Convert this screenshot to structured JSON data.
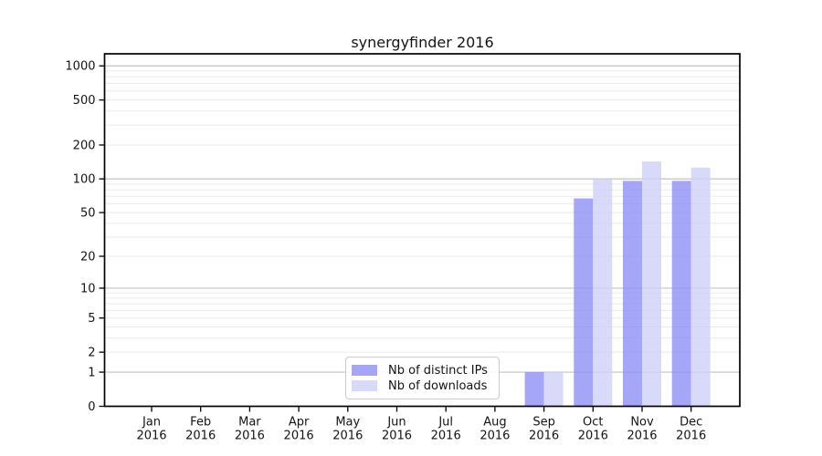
{
  "chart_data": {
    "type": "bar",
    "title": "synergyfinder 2016",
    "categories": [
      "Jan 2016",
      "Feb 2016",
      "Mar 2016",
      "Apr 2016",
      "May 2016",
      "Jun 2016",
      "Jul 2016",
      "Aug 2016",
      "Sep 2016",
      "Oct 2016",
      "Nov 2016",
      "Dec 2016"
    ],
    "series": [
      {
        "name": "Nb of distinct IPs",
        "color": "#9090f6",
        "opacity": 0.8,
        "values": [
          0,
          0,
          0,
          0,
          0,
          0,
          0,
          0,
          1,
          67,
          96,
          96
        ]
      },
      {
        "name": "Nb of downloads",
        "color": "#d0d0f9",
        "opacity": 0.8,
        "values": [
          0,
          0,
          0,
          0,
          0,
          0,
          0,
          0,
          1,
          100,
          143,
          126
        ]
      }
    ],
    "yscale": "log1p",
    "yticks": [
      0,
      1,
      2,
      5,
      10,
      20,
      50,
      100,
      200,
      500,
      1000
    ],
    "ylim": [
      0,
      1272
    ],
    "grid": {
      "major_at": [
        1,
        10,
        100,
        1000
      ],
      "minor": "2-9 per decade",
      "major_color": "#c3c3c3",
      "minor_color": "#ebebeb"
    },
    "legend_position": "lower center"
  }
}
